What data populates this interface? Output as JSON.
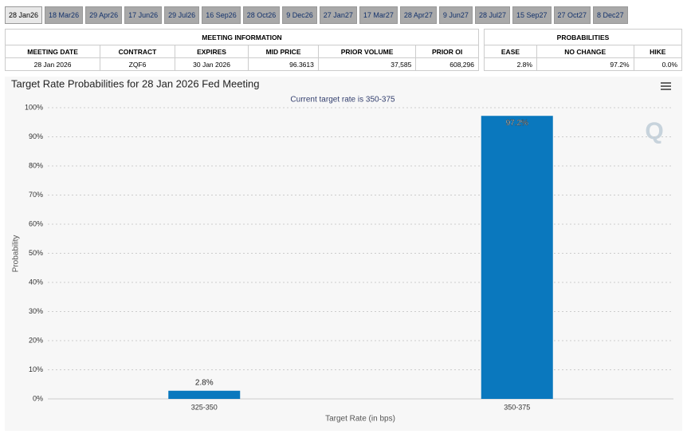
{
  "tabs": [
    "28 Jan26",
    "18 Mar26",
    "29 Apr26",
    "17 Jun26",
    "29 Jul26",
    "16 Sep26",
    "28 Oct26",
    "9 Dec26",
    "27 Jan27",
    "17 Mar27",
    "28 Apr27",
    "9 Jun27",
    "28 Jul27",
    "15 Sep27",
    "27 Oct27",
    "8 Dec27"
  ],
  "meeting_table": {
    "title": "MEETING INFORMATION",
    "headers": [
      "MEETING DATE",
      "CONTRACT",
      "EXPIRES",
      "MID PRICE",
      "PRIOR VOLUME",
      "PRIOR OI"
    ],
    "row": [
      "28 Jan 2026",
      "ZQF6",
      "30 Jan 2026",
      "96.3613",
      "37,585",
      "608,296"
    ]
  },
  "probability_table": {
    "title": "PROBABILITIES",
    "headers": [
      "EASE",
      "NO CHANGE",
      "HIKE"
    ],
    "row": [
      "2.8%",
      "97.2%",
      "0.0%"
    ]
  },
  "chart_data": {
    "type": "bar",
    "title": "Target Rate Probabilities for 28 Jan 2026 Fed Meeting",
    "subtitle": "Current target rate is 350-375",
    "x_label": "Target Rate (in bps)",
    "y_label": "Probability",
    "categories": [
      "325-350",
      "350-375"
    ],
    "values": [
      2.8,
      97.2
    ],
    "value_labels": [
      "2.8%",
      "97.2%"
    ],
    "color": "#0a78be",
    "ylim": [
      0,
      100
    ],
    "yticks": [
      {
        "value": 0,
        "label": "0%"
      },
      {
        "value": 10,
        "label": "10%"
      },
      {
        "value": 20,
        "label": "20%"
      },
      {
        "value": 30,
        "label": "30%"
      },
      {
        "value": 40,
        "label": "40%"
      },
      {
        "value": 50,
        "label": "50%"
      },
      {
        "value": 60,
        "label": "60%"
      },
      {
        "value": 70,
        "label": "70%"
      },
      {
        "value": 80,
        "label": "80%"
      },
      {
        "value": 90,
        "label": "90%"
      },
      {
        "value": 100,
        "label": "100%"
      }
    ],
    "grid": true
  }
}
